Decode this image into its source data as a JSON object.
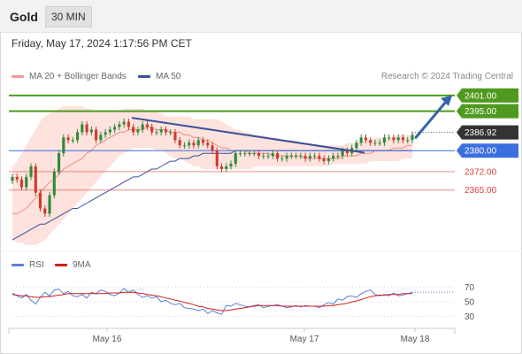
{
  "header": {
    "instrument": "Gold",
    "timeframe": "30 MIN",
    "timestamp": "Friday, May 17, 2024 1:17:56 PM CET"
  },
  "legend": {
    "bollinger_label": "MA 20 + Bollinger Bands",
    "ma50_label": "MA 50",
    "rsi_label": "RSI",
    "rsi_ma_label": "9MA",
    "copyright": "Research © 2024 Trading Central"
  },
  "colors": {
    "resistance": "#4f9a1e",
    "pivot": "#3b6fe0",
    "support": "#e04040",
    "current": "#333333",
    "bull": "#2f8a3a",
    "bear": "#d23a2a",
    "band_fill": "#fde2dd",
    "ma20": "#f08a80",
    "ma50": "#3a4f9a",
    "trendline": "#3a4f9a",
    "arrow": "#3366aa",
    "rsi": "#5a7fd6",
    "rsi_ma": "#d01c1c"
  },
  "chart_data": [
    {
      "type": "candlestick",
      "title": "Gold 30 MIN",
      "x_ticks": [
        "May 16",
        "May 17",
        "May 18"
      ],
      "y_range": [
        2343,
        2405
      ],
      "current_price": "2386.92",
      "levels": [
        {
          "value": 2401.0,
          "label": "2401.00",
          "kind": "resistance"
        },
        {
          "value": 2395.0,
          "label": "2395.00",
          "kind": "resistance"
        },
        {
          "value": 2380.0,
          "label": "2380.00",
          "kind": "pivot"
        },
        {
          "value": 2372.0,
          "label": "2372.00",
          "kind": "support"
        },
        {
          "value": 2365.0,
          "label": "2365.00",
          "kind": "support"
        }
      ],
      "trendline": {
        "from": 2392.5,
        "to": 2379.2
      },
      "forecast_arrow": {
        "from": 2385,
        "to": 2401
      },
      "candles_close": [
        2370,
        2369,
        2366,
        2370,
        2374,
        2364,
        2358,
        2356,
        2363,
        2372,
        2379,
        2385,
        2384,
        2384,
        2387,
        2390,
        2387,
        2388,
        2384,
        2386,
        2387,
        2388,
        2389,
        2390,
        2391,
        2389,
        2387,
        2388,
        2390,
        2389,
        2387,
        2387,
        2388,
        2387,
        2387,
        2384,
        2382,
        2382,
        2383,
        2382,
        2384,
        2383,
        2382,
        2380,
        2374,
        2373,
        2374,
        2375,
        2379,
        2379,
        2379,
        2379,
        2379,
        2378,
        2378,
        2378,
        2379,
        2377,
        2377,
        2378,
        2378,
        2378,
        2378,
        2377,
        2378,
        2378,
        2377,
        2376,
        2377,
        2378,
        2378,
        2380,
        2379,
        2381,
        2383,
        2385,
        2384,
        2383,
        2383,
        2383,
        2385,
        2385,
        2384,
        2385,
        2384,
        2384,
        2386
      ],
      "ma20": [
        2356,
        2356,
        2357,
        2358,
        2360,
        2362,
        2364,
        2366,
        2368,
        2369,
        2371,
        2373,
        2374,
        2375,
        2376,
        2377,
        2379,
        2380,
        2382,
        2383,
        2384,
        2385,
        2386,
        2387,
        2387,
        2388,
        2388,
        2388,
        2388,
        2389,
        2389,
        2388,
        2388,
        2388,
        2387,
        2387,
        2387,
        2386,
        2386,
        2385,
        2385,
        2384,
        2384,
        2383,
        2382,
        2381,
        2381,
        2380,
        2380,
        2380,
        2380,
        2379,
        2379,
        2379,
        2379,
        2379,
        2378,
        2378,
        2378,
        2378,
        2378,
        2378,
        2378,
        2377,
        2377,
        2377,
        2377,
        2377,
        2377,
        2377,
        2377,
        2378,
        2378,
        2378,
        2378,
        2379,
        2379,
        2379,
        2380,
        2380,
        2380,
        2380,
        2381,
        2381,
        2381,
        2382,
        2382
      ],
      "ma50": [
        2346,
        2347,
        2348,
        2349,
        2350,
        2351,
        2352,
        2352,
        2353,
        2354,
        2355,
        2356,
        2357,
        2358,
        2358,
        2359,
        2360,
        2361,
        2362,
        2363,
        2364,
        2365,
        2366,
        2367,
        2368,
        2369,
        2370,
        2370,
        2371,
        2372,
        2373,
        2373,
        2374,
        2375,
        2376,
        2376,
        2377,
        2377,
        2377,
        2378,
        2378,
        2379,
        2379,
        2379,
        2379,
        2379,
        2379,
        2379,
        2380,
        2380,
        2380,
        2380,
        2380,
        2380,
        2380,
        2380,
        2380,
        2380,
        2380,
        2380,
        2380,
        2380,
        2380,
        2380,
        2380,
        2380,
        2380,
        2380,
        2380,
        2380,
        2380,
        2380,
        2380,
        2380,
        2380,
        2380,
        2380,
        2380,
        2380,
        2380,
        2380,
        2380,
        2380,
        2380,
        2380,
        2380,
        2380
      ],
      "band_upper": [
        2374,
        2376,
        2379,
        2382,
        2385,
        2388,
        2391,
        2393,
        2394,
        2395,
        2396,
        2397,
        2397,
        2397,
        2397,
        2397,
        2396,
        2396,
        2395,
        2395,
        2395,
        2395,
        2395,
        2395,
        2396,
        2396,
        2396,
        2396,
        2396,
        2395,
        2395,
        2395,
        2394,
        2393,
        2393,
        2393,
        2393,
        2393,
        2393,
        2392,
        2392,
        2392,
        2392,
        2392,
        2392,
        2391,
        2390,
        2389,
        2388,
        2388,
        2387,
        2387,
        2386,
        2386,
        2386,
        2385,
        2385,
        2385,
        2384,
        2384,
        2384,
        2384,
        2383,
        2382,
        2382,
        2382,
        2382,
        2382,
        2382,
        2382,
        2382,
        2382,
        2383,
        2383,
        2383,
        2384,
        2384,
        2384,
        2385,
        2385,
        2385,
        2385,
        2385,
        2386,
        2386,
        2386,
        2386
      ],
      "band_lower": [
        2346,
        2345,
        2345,
        2344,
        2344,
        2344,
        2345,
        2346,
        2348,
        2350,
        2352,
        2354,
        2356,
        2358,
        2360,
        2362,
        2364,
        2366,
        2368,
        2370,
        2372,
        2374,
        2376,
        2378,
        2379,
        2380,
        2381,
        2381,
        2381,
        2381,
        2381,
        2380,
        2380,
        2379,
        2378,
        2377,
        2377,
        2376,
        2375,
        2374,
        2374,
        2373,
        2373,
        2373,
        2373,
        2373,
        2373,
        2373,
        2373,
        2373,
        2373,
        2373,
        2374,
        2374,
        2374,
        2374,
        2374,
        2374,
        2374,
        2374,
        2374,
        2374,
        2374,
        2374,
        2374,
        2374,
        2374,
        2374,
        2374,
        2375,
        2375,
        2375,
        2375,
        2375,
        2375,
        2375,
        2375,
        2376,
        2376,
        2376,
        2376,
        2376,
        2376,
        2376,
        2377,
        2377,
        2377
      ]
    },
    {
      "type": "line",
      "title": "RSI",
      "y_ticks": [
        "70",
        "50",
        "30"
      ],
      "y_range": [
        20,
        80
      ],
      "series": [
        {
          "name": "RSI",
          "values": [
            62,
            58,
            55,
            60,
            52,
            47,
            56,
            63,
            58,
            66,
            67,
            61,
            64,
            58,
            57,
            60,
            55,
            63,
            61,
            66,
            64,
            60,
            58,
            62,
            68,
            63,
            66,
            60,
            56,
            58,
            55,
            57,
            50,
            52,
            48,
            46,
            48,
            42,
            41,
            40,
            38,
            40,
            34,
            38,
            35,
            33,
            45,
            44,
            48,
            46,
            44,
            43,
            45,
            46,
            42,
            44,
            45,
            46,
            44,
            42,
            43,
            45,
            43,
            45,
            44,
            44,
            42,
            46,
            49,
            47,
            54,
            52,
            57,
            58,
            56,
            61,
            64,
            66,
            60,
            58,
            60,
            58,
            62,
            58,
            59,
            61,
            63
          ]
        },
        {
          "name": "9MA",
          "values": [
            60,
            59,
            58,
            58,
            57,
            56,
            56,
            57,
            57,
            58,
            59,
            60,
            61,
            61,
            61,
            61,
            61,
            61,
            61,
            61,
            61,
            62,
            62,
            62,
            63,
            63,
            63,
            62,
            61,
            60,
            59,
            58,
            57,
            55,
            54,
            52,
            51,
            49,
            48,
            46,
            44,
            43,
            41,
            40,
            39,
            38,
            38,
            39,
            40,
            41,
            42,
            43,
            44,
            45,
            45,
            45,
            45,
            45,
            44,
            44,
            44,
            44,
            44,
            44,
            44,
            44,
            44,
            44,
            45,
            45,
            46,
            47,
            48,
            50,
            51,
            53,
            55,
            57,
            58,
            59,
            59,
            60,
            60,
            60,
            61,
            61,
            61
          ]
        }
      ]
    }
  ]
}
